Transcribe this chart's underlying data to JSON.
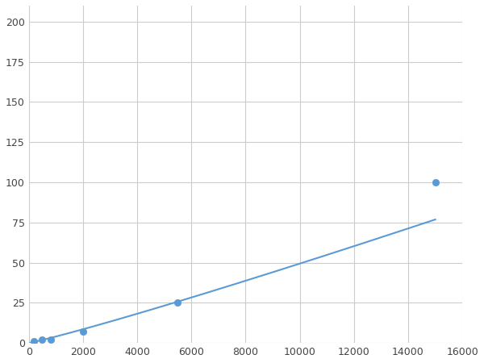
{
  "x": [
    200,
    500,
    800,
    2000,
    5500,
    15000
  ],
  "y": [
    1.0,
    2.0,
    2.0,
    7.0,
    25.0,
    100.0
  ],
  "line_color": "#5b9bd5",
  "marker_color": "#5b9bd5",
  "marker_size": 6,
  "line_width": 1.5,
  "xlim": [
    0,
    16000
  ],
  "ylim": [
    0,
    210
  ],
  "xticks": [
    0,
    2000,
    4000,
    6000,
    8000,
    10000,
    12000,
    14000,
    16000
  ],
  "yticks": [
    0,
    25,
    50,
    75,
    100,
    125,
    150,
    175,
    200
  ],
  "grid_color": "#cccccc",
  "background_color": "#ffffff",
  "figsize": [
    6.0,
    4.5
  ],
  "dpi": 100
}
